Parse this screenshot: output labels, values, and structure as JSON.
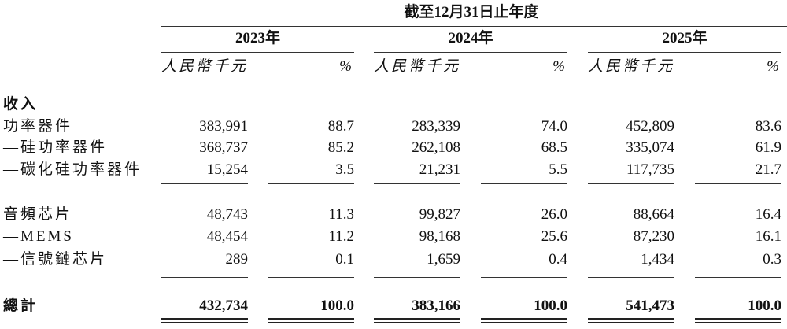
{
  "header": {
    "period": "截至12月31日止年度"
  },
  "years": [
    "2023年",
    "2024年",
    "2025年"
  ],
  "subheaders": {
    "currency": "人民幣千元",
    "percent": "%"
  },
  "section_title": "收入",
  "groups": [
    {
      "rows": [
        {
          "label": "功率器件",
          "values": [
            "383,991",
            "88.7",
            "283,339",
            "74.0",
            "452,809",
            "83.6"
          ]
        },
        {
          "label": "—硅功率器件",
          "values": [
            "368,737",
            "85.2",
            "262,108",
            "68.5",
            "335,074",
            "61.9"
          ]
        },
        {
          "label": "—碳化硅功率器件",
          "values": [
            "15,254",
            "3.5",
            "21,231",
            "5.5",
            "117,735",
            "21.7"
          ]
        }
      ]
    },
    {
      "rows": [
        {
          "label": "音頻芯片",
          "values": [
            "48,743",
            "11.3",
            "99,827",
            "26.0",
            "88,664",
            "16.4"
          ]
        },
        {
          "label": "—MEMS",
          "values": [
            "48,454",
            "11.2",
            "98,168",
            "25.6",
            "87,230",
            "16.1"
          ]
        },
        {
          "label": "—信號鏈芯片",
          "values": [
            "289",
            "0.1",
            "1,659",
            "0.4",
            "1,434",
            "0.3"
          ]
        }
      ]
    }
  ],
  "total": {
    "label": "總計",
    "values": [
      "432,734",
      "100.0",
      "383,166",
      "100.0",
      "541,473",
      "100.0"
    ]
  }
}
